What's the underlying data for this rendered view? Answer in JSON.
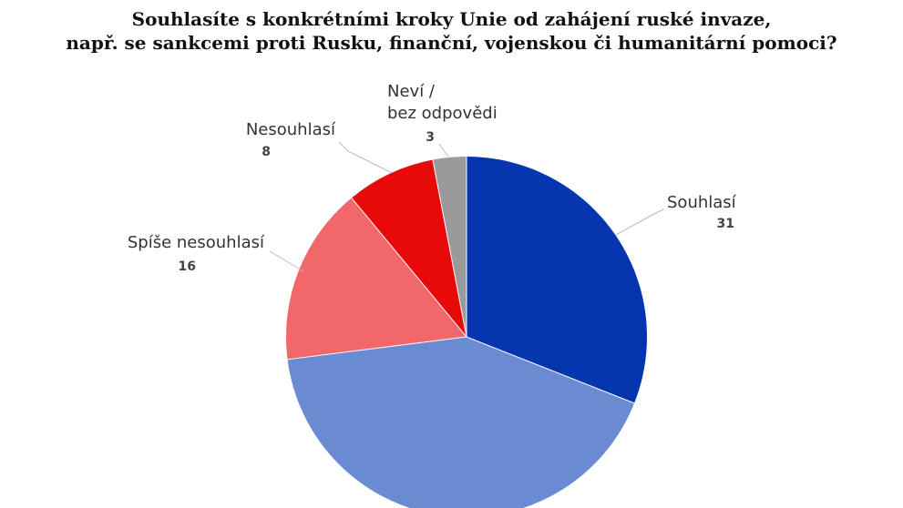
{
  "chart_data": {
    "type": "pie",
    "title": "Souhlasíte s konkrétními kroky Unie od zahájení ruské invaze,\nnapř. se sankcemi proti Rusku, finanční, vojenskou či humanitární pomoci?",
    "categories": [
      "Souhlasí",
      null,
      "Spíše nesouhlasí",
      "Nesouhlasí",
      "Neví /\nbez odpovědi"
    ],
    "values": [
      31,
      42,
      16,
      8,
      3
    ],
    "colors": [
      "#0536b0",
      "#6a8bd2",
      "#f2676a",
      "#e80a0a",
      "#9a9a9a"
    ]
  }
}
